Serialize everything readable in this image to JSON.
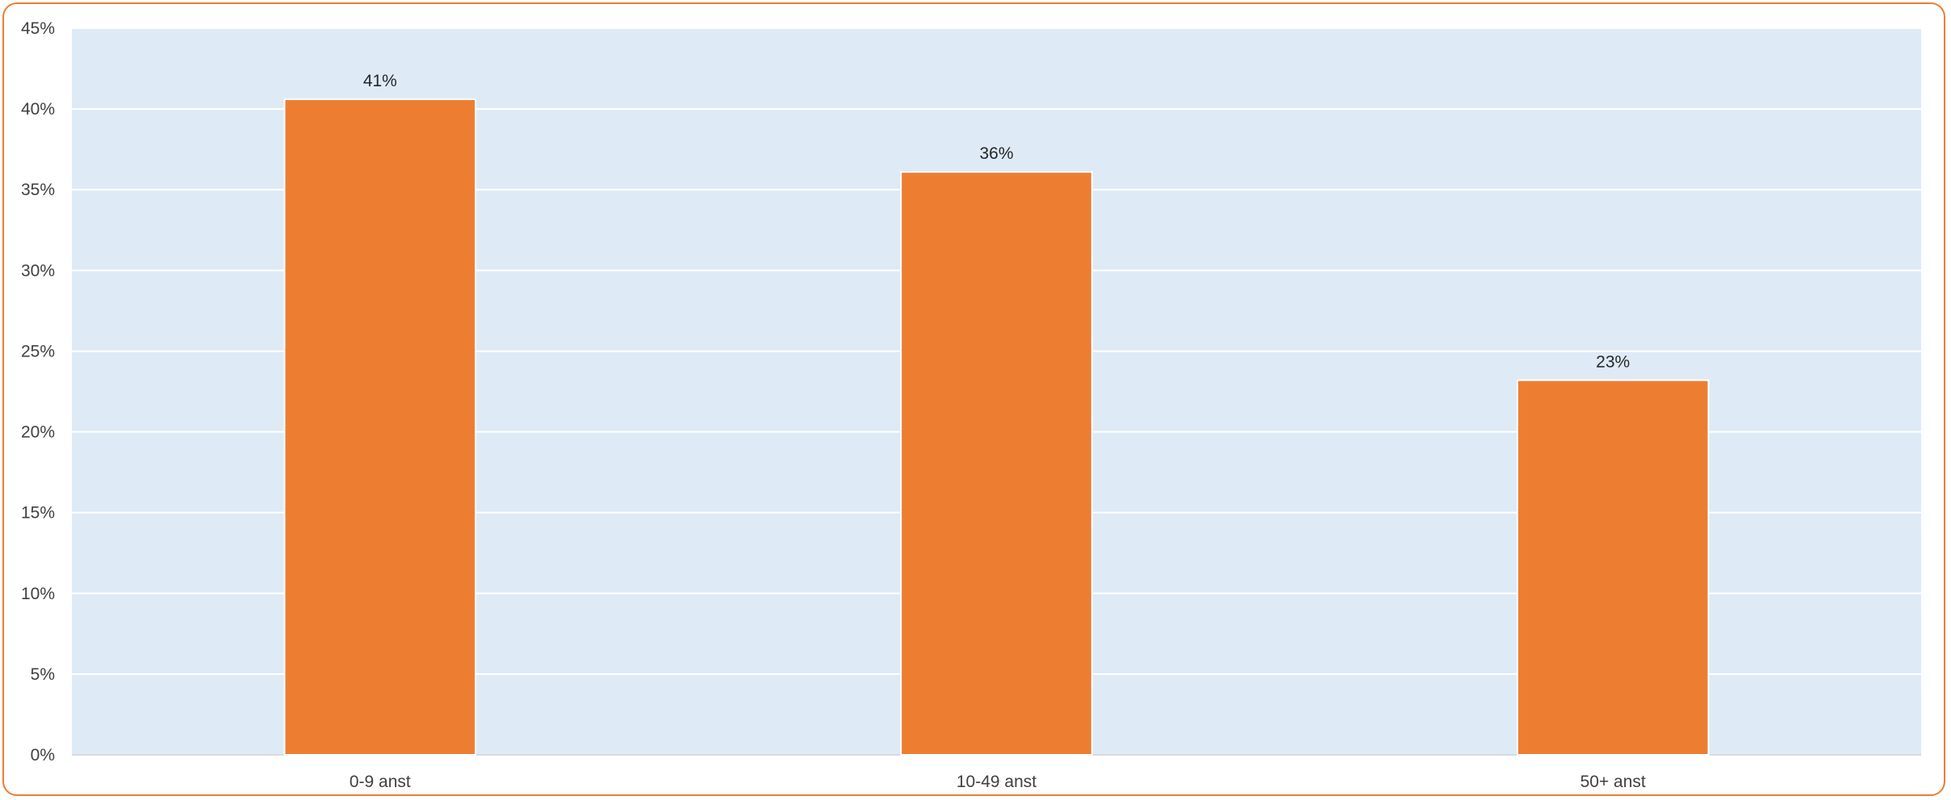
{
  "chart_data": {
    "type": "bar",
    "title": "",
    "xlabel": "",
    "ylabel": "",
    "categories": [
      "0-9 anst",
      "10-49 anst",
      "50+ anst"
    ],
    "values": [
      0.406,
      0.361,
      0.232
    ],
    "data_labels": [
      "41%",
      "36%",
      "23%"
    ],
    "ylim": [
      0,
      0.45
    ],
    "yticks": [
      0,
      0.05,
      0.1,
      0.15,
      0.2,
      0.25,
      0.3,
      0.35,
      0.4,
      0.45
    ],
    "ytick_labels": [
      "0%",
      "5%",
      "10%",
      "15%",
      "20%",
      "25%",
      "30%",
      "35%",
      "40%",
      "45%"
    ],
    "grid": true,
    "legend": "none",
    "colors": {
      "bar": "#ED7D31",
      "plot_background": "#DEEAF6",
      "gridline": "#FFFFFF",
      "border": "#ED7D31"
    }
  }
}
